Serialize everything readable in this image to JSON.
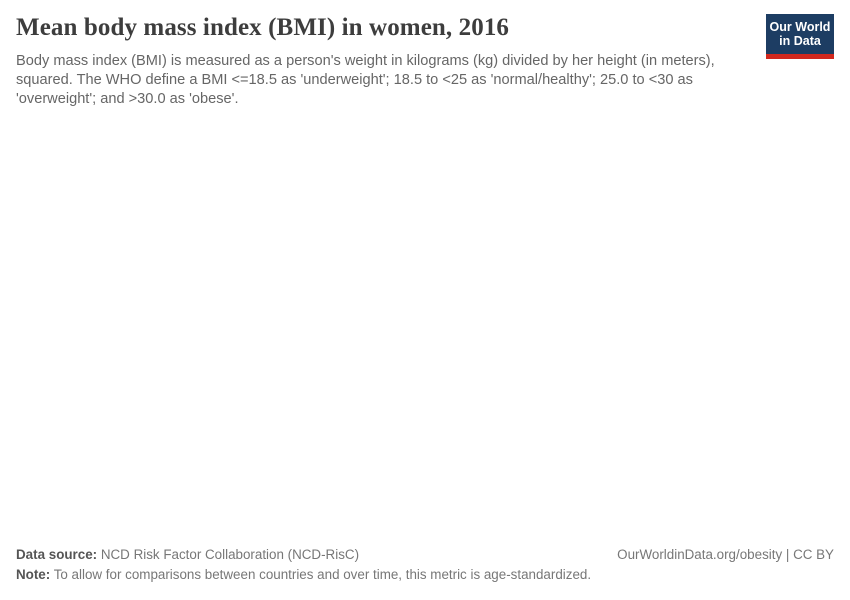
{
  "header": {
    "title": "Mean body mass index (BMI) in women, 2016",
    "subtitle": "Body mass index (BMI) is measured as a person's weight in kilograms (kg) divided by her height (in meters), squared. The WHO define a BMI <=18.5 as 'underweight'; 18.5 to <25 as 'normal/healthy'; 25.0 to <30 as 'overweight'; and >30.0 as 'obese'.",
    "logo": {
      "line1": "Our World",
      "line2": "in Data",
      "bg_color": "#1d3d63",
      "accent_color": "#d2281e"
    }
  },
  "chart_data": {
    "type": "map",
    "title": "Mean body mass index (BMI) in women, 2016",
    "series": [],
    "render_state": "empty - no chart content visible in screenshot"
  },
  "footer": {
    "data_source_label": "Data source:",
    "data_source_value": " NCD Risk Factor Collaboration (NCD-RisC)",
    "license_text": "OurWorldinData.org/obesity | CC BY",
    "note_label": "Note:",
    "note_value": " To allow for comparisons between countries and over time, this metric is age-standardized."
  },
  "colors": {
    "title": "#3d3d3d",
    "subtitle": "#666666",
    "footer": "#777777",
    "logo_navy": "#1d3d63",
    "logo_red": "#d2281e"
  }
}
